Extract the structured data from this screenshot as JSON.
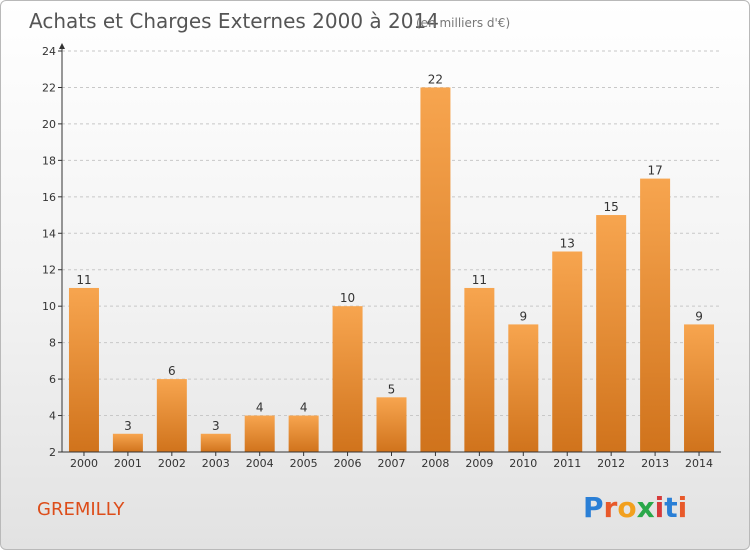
{
  "title": "Achats et Charges Externes 2000 à 2014",
  "unit_note": "(en milliers d'€)",
  "commune": "GREMILLY",
  "logo": {
    "text": "Proxiti",
    "letters": [
      "P",
      "r",
      "o",
      "x",
      "i",
      "t",
      "i"
    ],
    "colors": [
      "#2a7fd6",
      "#e8592a",
      "#f2a01e",
      "#2aa84a",
      "#d63b3b",
      "#2a7fd6",
      "#e8592a"
    ]
  },
  "colors": {
    "bar_light": "#f7a54f",
    "bar_dark": "#d0731c",
    "axis": "#333333",
    "grid": "#c8c8c8"
  },
  "chart_data": {
    "type": "bar",
    "title": "Achats et Charges Externes 2000 à 2014",
    "xlabel": "",
    "ylabel": "",
    "categories": [
      "2000",
      "2001",
      "2002",
      "2003",
      "2004",
      "2005",
      "2006",
      "2007",
      "2008",
      "2009",
      "2010",
      "2011",
      "2012",
      "2013",
      "2014"
    ],
    "values": [
      11,
      3,
      6,
      3,
      4,
      4,
      10,
      5,
      22,
      11,
      9,
      13,
      15,
      17,
      9
    ],
    "ylim": [
      2,
      24
    ],
    "yticks": [
      2,
      4,
      6,
      8,
      10,
      12,
      14,
      16,
      18,
      20,
      22,
      24
    ],
    "grid": true,
    "data_labels": true
  }
}
